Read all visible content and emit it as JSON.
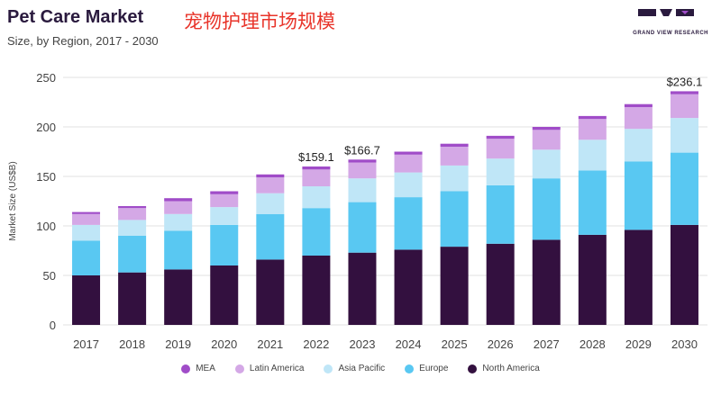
{
  "header": {
    "title": "Pet Care Market",
    "subtitle": "Size, by Region, 2017 - 2030",
    "title_cn": "宠物护理市场规模",
    "logo_text": "GRAND VIEW RESEARCH"
  },
  "chart_data": {
    "type": "bar",
    "stacked": true,
    "categories": [
      "2017",
      "2018",
      "2019",
      "2020",
      "2021",
      "2022",
      "2023",
      "2024",
      "2025",
      "2026",
      "2027",
      "2028",
      "2029",
      "2030"
    ],
    "ylabel": "Market Size (US$B)",
    "xlabel": "",
    "ylim": [
      0,
      250
    ],
    "yticks": [
      0,
      50,
      100,
      150,
      200,
      250
    ],
    "grid": true,
    "legend_position": "bottom",
    "series": [
      {
        "name": "North America",
        "color": "#33103f",
        "values": [
          50,
          53,
          56,
          60,
          66,
          70,
          73,
          76,
          79,
          82,
          86,
          91,
          96,
          101
        ]
      },
      {
        "name": "Europe",
        "color": "#59c8f2",
        "values": [
          35,
          37,
          39,
          41,
          46,
          48,
          51,
          53,
          56,
          59,
          62,
          65,
          69,
          73
        ]
      },
      {
        "name": "Asia Pacific",
        "color": "#bfe6f7",
        "values": [
          16,
          16,
          17,
          18,
          21,
          22,
          24,
          25,
          26,
          27,
          29,
          31,
          33,
          35
        ]
      },
      {
        "name": "Latin America",
        "color": "#d4a8e6",
        "values": [
          11,
          12,
          13,
          13,
          16,
          17,
          16,
          18,
          19,
          20,
          20,
          21,
          22,
          24
        ]
      },
      {
        "name": "MEA",
        "color": "#a04cc8",
        "values": [
          2,
          2,
          3,
          3,
          3,
          3,
          3,
          3,
          3,
          3,
          3,
          3,
          3,
          3
        ]
      }
    ],
    "totals_labeled": [
      {
        "category": "2022",
        "label": "$159.1"
      },
      {
        "category": "2023",
        "label": "$166.7"
      },
      {
        "category": "2030",
        "label": "$236.1"
      }
    ]
  },
  "legend_order": [
    "MEA",
    "Latin America",
    "Asia Pacific",
    "Europe",
    "North America"
  ]
}
